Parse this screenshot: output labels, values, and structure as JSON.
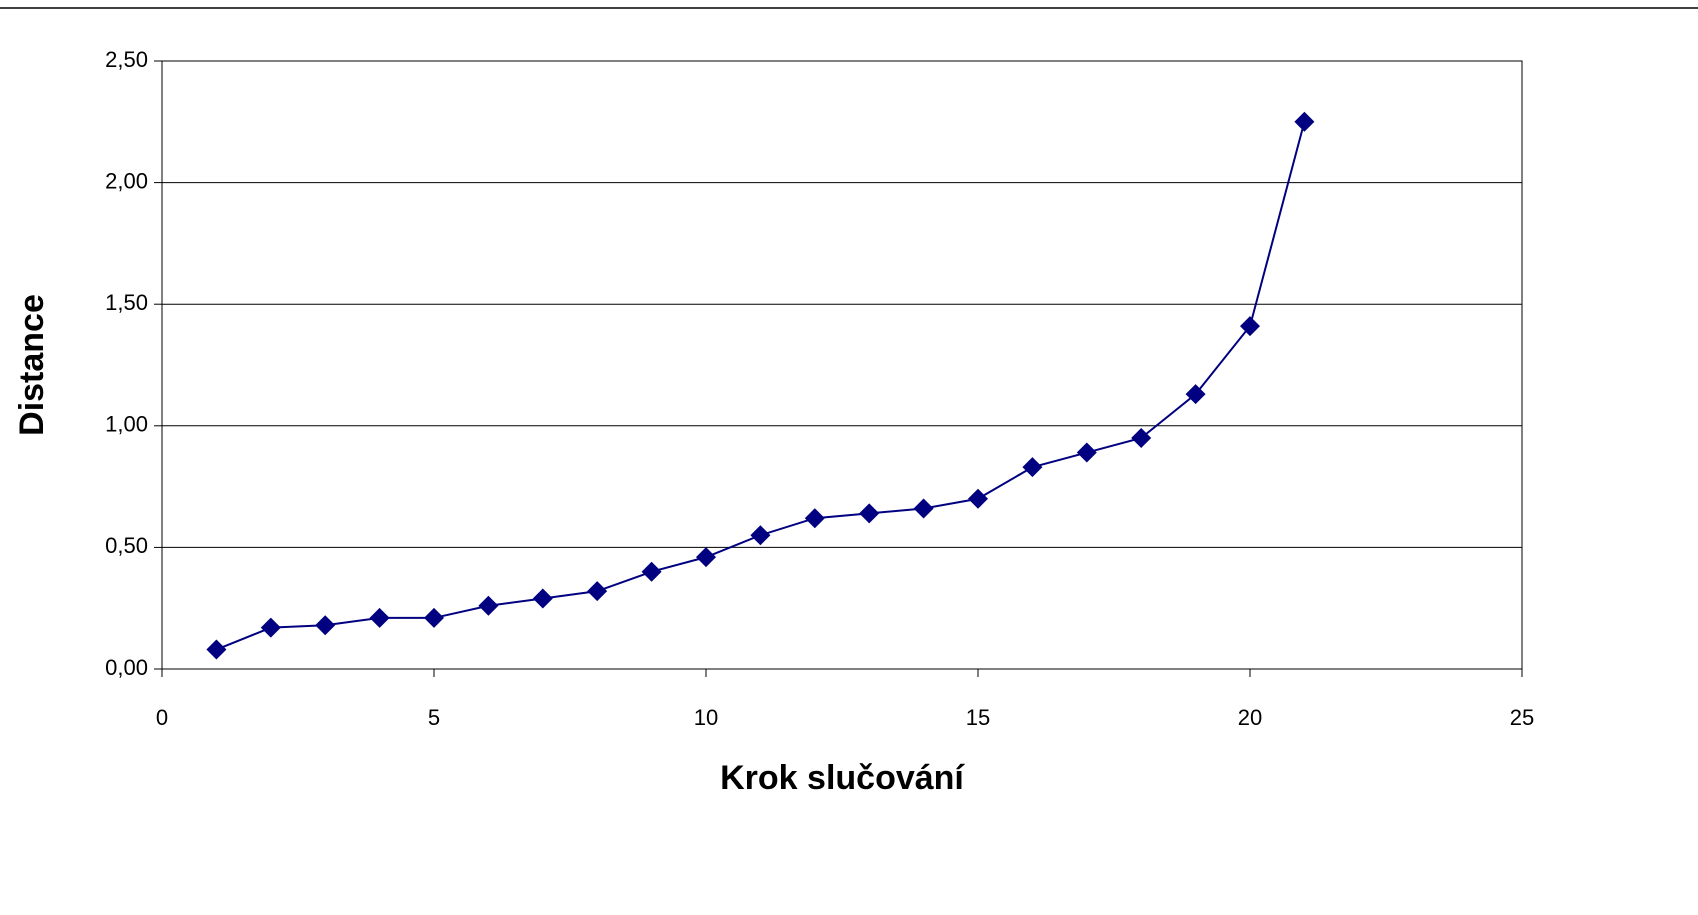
{
  "chart_data": {
    "type": "line",
    "xlabel": "Krok slučování",
    "ylabel": "Distance",
    "x": [
      1,
      2,
      3,
      4,
      5,
      6,
      7,
      8,
      9,
      10,
      11,
      12,
      13,
      14,
      15,
      16,
      17,
      18,
      19,
      20,
      21
    ],
    "series": [
      {
        "color": "#000080",
        "values": [
          0.08,
          0.17,
          0.18,
          0.21,
          0.21,
          0.26,
          0.29,
          0.32,
          0.4,
          0.46,
          0.55,
          0.62,
          0.64,
          0.66,
          0.7,
          0.83,
          0.89,
          0.95,
          1.13,
          1.41,
          2.25
        ]
      }
    ],
    "xlim": [
      0,
      25
    ],
    "xticks": [
      0,
      5,
      10,
      15,
      20,
      25
    ],
    "ylim": [
      0,
      2.5
    ],
    "yticks": [
      {
        "value": 0,
        "label": "0,00"
      },
      {
        "value": 0.5,
        "label": "0,50"
      },
      {
        "value": 1,
        "label": "1,00"
      },
      {
        "value": 1.5,
        "label": "1,50"
      },
      {
        "value": 2,
        "label": "2,00"
      },
      {
        "value": 2.5,
        "label": "2,50"
      }
    ],
    "grid": true
  }
}
